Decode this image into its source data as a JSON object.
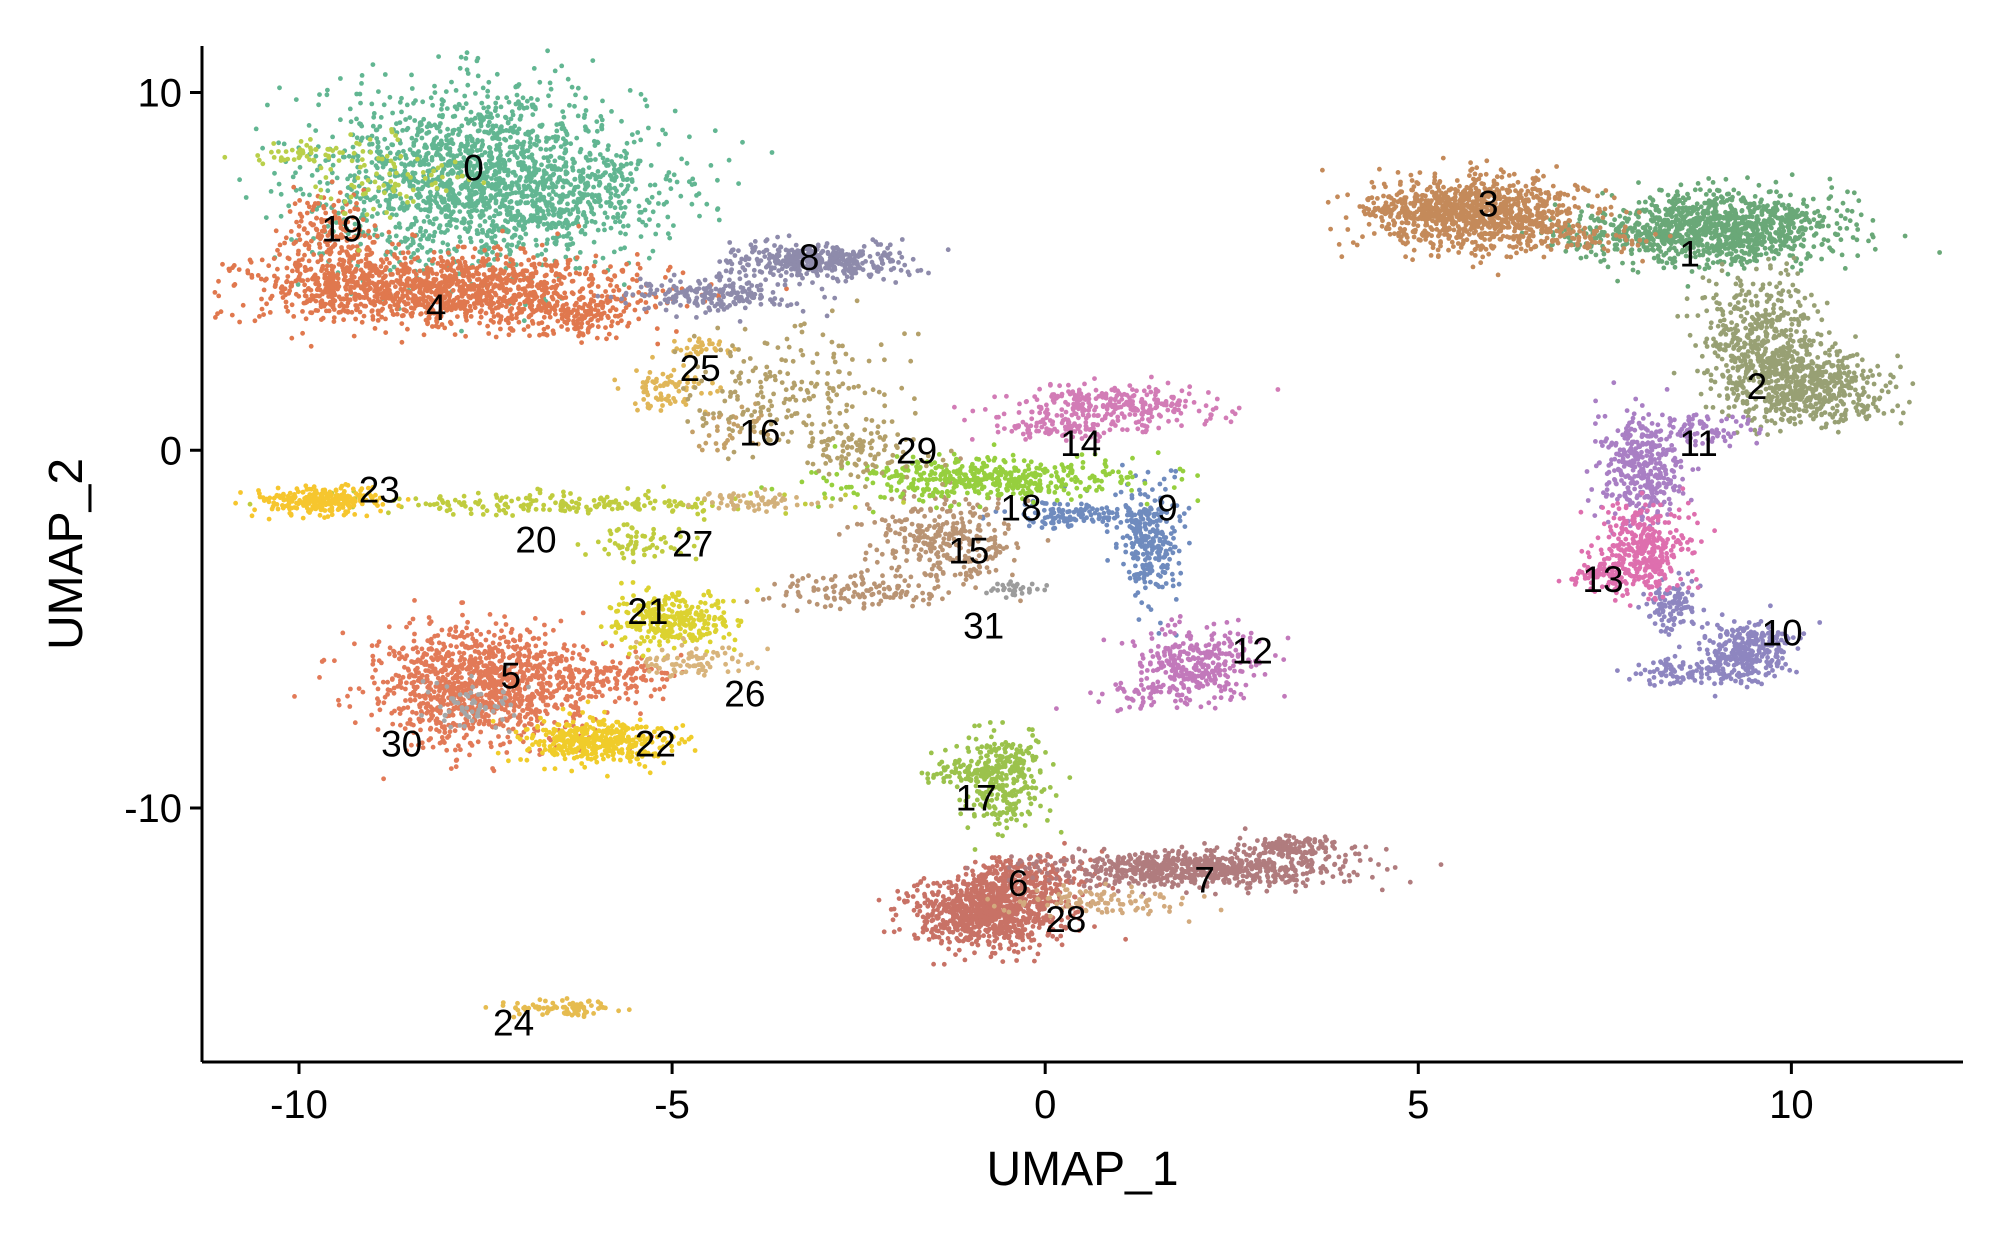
{
  "chart_data": {
    "type": "scatter",
    "xlabel": "UMAP_1",
    "ylabel": "UMAP_2",
    "xlim": [
      -11.3,
      12.3
    ],
    "ylim": [
      -17.1,
      11.3
    ],
    "xticks": [
      -10,
      -5,
      0,
      5,
      10
    ],
    "xtick_labels": [
      "-10",
      "-5",
      "0",
      "5",
      "10"
    ],
    "yticks": [
      -10,
      0,
      10
    ],
    "ytick_labels": [
      "-10",
      "0",
      "10"
    ],
    "grid": false,
    "legend": "none",
    "clusters": [
      {
        "label": "0",
        "label_x": -7.8,
        "label_y": 7.9,
        "color": "#62b692",
        "blobs": [
          [
            -7.6,
            7.6,
            1.1,
            1.3,
            1600
          ],
          [
            -6.5,
            7.2,
            0.9,
            0.8,
            300
          ]
        ]
      },
      {
        "label": "1",
        "label_x": 8.5,
        "label_y": 5.5,
        "color": "#6aa878",
        "blobs": [
          [
            9.0,
            6.2,
            0.8,
            0.5,
            1100
          ],
          [
            7.5,
            6.0,
            0.4,
            0.2,
            60
          ]
        ]
      },
      {
        "label": "2",
        "label_x": 9.4,
        "label_y": 1.8,
        "color": "#98a074",
        "blobs": [
          [
            9.6,
            3.0,
            0.4,
            0.9,
            500
          ],
          [
            10.3,
            1.8,
            0.5,
            0.5,
            500
          ]
        ]
      },
      {
        "label": "3",
        "label_x": 5.8,
        "label_y": 6.9,
        "color": "#c48a5a",
        "blobs": [
          [
            5.8,
            6.6,
            0.7,
            0.5,
            1000
          ],
          [
            5.0,
            6.8,
            0.4,
            0.2,
            80
          ],
          [
            7.2,
            5.9,
            0.5,
            0.2,
            60
          ]
        ]
      },
      {
        "label": "4",
        "label_x": -8.3,
        "label_y": 4.0,
        "color": "#e0784e",
        "blobs": [
          [
            -8.2,
            4.5,
            1.3,
            0.5,
            1300
          ],
          [
            -9.6,
            5.8,
            0.3,
            0.7,
            200
          ],
          [
            -6.3,
            3.8,
            0.5,
            0.3,
            150
          ]
        ]
      },
      {
        "label": "5",
        "label_x": -7.3,
        "label_y": -6.3,
        "color": "#e27a58",
        "blobs": [
          [
            -7.6,
            -6.6,
            0.7,
            0.8,
            1100
          ],
          [
            -6.0,
            -6.3,
            0.5,
            0.3,
            150
          ]
        ]
      },
      {
        "label": "6",
        "label_x": -0.5,
        "label_y": -12.1,
        "color": "#c87266",
        "blobs": [
          [
            -0.8,
            -12.9,
            0.5,
            0.5,
            900
          ],
          [
            -0.3,
            -11.9,
            0.4,
            0.3,
            200
          ]
        ]
      },
      {
        "label": "7",
        "label_x": 2.0,
        "label_y": -12.0,
        "color": "#b07c7e",
        "blobs": [
          [
            2.0,
            -11.7,
            1.0,
            0.25,
            700
          ],
          [
            3.3,
            -11.1,
            0.3,
            0.15,
            120
          ]
        ]
      },
      {
        "label": "8",
        "label_x": -3.3,
        "label_y": 5.4,
        "color": "#8e8bab",
        "blobs": [
          [
            -3.0,
            5.3,
            0.6,
            0.25,
            400
          ],
          [
            -4.5,
            4.3,
            0.6,
            0.25,
            200
          ]
        ]
      },
      {
        "label": "9",
        "label_x": 1.5,
        "label_y": -1.6,
        "color": "#6f8bbe",
        "blobs": [
          [
            1.4,
            -2.6,
            0.2,
            0.8,
            250
          ],
          [
            0.6,
            -1.8,
            0.5,
            0.2,
            150
          ]
        ]
      },
      {
        "label": "10",
        "label_x": 9.6,
        "label_y": -5.1,
        "color": "#8e86c0",
        "blobs": [
          [
            9.4,
            -5.6,
            0.3,
            0.4,
            300
          ],
          [
            8.6,
            -6.2,
            0.4,
            0.2,
            100
          ],
          [
            8.4,
            -4.4,
            0.2,
            0.4,
            100
          ]
        ]
      },
      {
        "label": "11",
        "label_x": 8.5,
        "label_y": 0.2,
        "color": "#a97fc4",
        "blobs": [
          [
            8.0,
            -0.5,
            0.3,
            0.7,
            350
          ],
          [
            8.7,
            0.6,
            0.4,
            0.2,
            80
          ]
        ]
      },
      {
        "label": "12",
        "label_x": 2.5,
        "label_y": -5.6,
        "color": "#c279bb",
        "blobs": [
          [
            2.0,
            -5.9,
            0.4,
            0.5,
            300
          ],
          [
            1.5,
            -6.8,
            0.4,
            0.2,
            60
          ]
        ]
      },
      {
        "label": "13",
        "label_x": 7.2,
        "label_y": -3.6,
        "color": "#de6fae",
        "blobs": [
          [
            8.0,
            -2.8,
            0.3,
            0.6,
            350
          ],
          [
            7.5,
            -3.5,
            0.3,
            0.2,
            80
          ]
        ]
      },
      {
        "label": "14",
        "label_x": 0.2,
        "label_y": 0.2,
        "color": "#d27cb6",
        "blobs": [
          [
            0.9,
            1.2,
            0.7,
            0.3,
            300
          ],
          [
            0.2,
            0.6,
            0.4,
            0.2,
            80
          ]
        ]
      },
      {
        "label": "15",
        "label_x": -1.3,
        "label_y": -2.8,
        "color": "#b99474",
        "blobs": [
          [
            -1.4,
            -2.5,
            0.5,
            0.6,
            300
          ],
          [
            -2.5,
            -3.9,
            0.6,
            0.3,
            120
          ]
        ]
      },
      {
        "label": "16",
        "label_x": -4.1,
        "label_y": 0.5,
        "color": "#c4a068",
        "blobs": [
          [
            -4.2,
            0.6,
            0.2,
            0.3,
            40
          ]
        ]
      },
      {
        "label": "17",
        "label_x": -1.2,
        "label_y": -9.7,
        "color": "#9bc24c",
        "blobs": [
          [
            -0.6,
            -9.2,
            0.3,
            0.7,
            300
          ],
          [
            -1.1,
            -9.0,
            0.3,
            0.2,
            60
          ]
        ]
      },
      {
        "label": "18",
        "label_x": -0.6,
        "label_y": -1.6,
        "color": "#96cf3e",
        "blobs": [
          [
            -0.9,
            -0.8,
            1.0,
            0.3,
            450
          ]
        ]
      },
      {
        "label": "19",
        "label_x": -9.7,
        "label_y": 6.2,
        "color": "#b9cf4a",
        "blobs": [
          [
            -9.8,
            8.3,
            0.4,
            0.15,
            50
          ],
          [
            -8.8,
            7.5,
            0.5,
            0.6,
            80
          ]
        ]
      },
      {
        "label": "20",
        "label_x": -7.1,
        "label_y": -2.5,
        "color": "#c0cc3e",
        "blobs": [
          [
            -6.6,
            -1.5,
            1.4,
            0.15,
            200
          ],
          [
            -5.4,
            -2.6,
            0.3,
            0.3,
            60
          ]
        ]
      },
      {
        "label": "21",
        "label_x": -5.6,
        "label_y": -4.5,
        "color": "#dcd230",
        "blobs": [
          [
            -5.0,
            -4.8,
            0.4,
            0.4,
            300
          ]
        ]
      },
      {
        "label": "22",
        "label_x": -5.5,
        "label_y": -8.2,
        "color": "#f0cc2a",
        "blobs": [
          [
            -5.9,
            -8.2,
            0.5,
            0.3,
            300
          ],
          [
            -6.4,
            -8.0,
            0.3,
            0.3,
            100
          ]
        ]
      },
      {
        "label": "23",
        "label_x": -9.2,
        "label_y": -1.1,
        "color": "#f6c62e",
        "blobs": [
          [
            -9.7,
            -1.4,
            0.4,
            0.2,
            250
          ]
        ]
      },
      {
        "label": "24",
        "label_x": -7.4,
        "label_y": -16.0,
        "color": "#e6bc50",
        "blobs": [
          [
            -6.5,
            -15.6,
            0.4,
            0.12,
            80
          ]
        ]
      },
      {
        "label": "25",
        "label_x": -4.9,
        "label_y": 2.3,
        "color": "#e0b658",
        "blobs": [
          [
            -5.1,
            1.7,
            0.3,
            0.3,
            80
          ],
          [
            -4.6,
            2.9,
            0.2,
            0.2,
            30
          ]
        ]
      },
      {
        "label": "26",
        "label_x": -4.3,
        "label_y": -6.8,
        "color": "#d8b47c",
        "blobs": [
          [
            -4.7,
            -5.9,
            0.4,
            0.2,
            80
          ]
        ]
      },
      {
        "label": "27",
        "label_x": -5.0,
        "label_y": -2.6,
        "color": "#d2b07a",
        "blobs": [
          [
            -3.9,
            -1.4,
            0.4,
            0.15,
            60
          ]
        ]
      },
      {
        "label": "28",
        "label_x": 0.0,
        "label_y": -13.1,
        "color": "#d2aa7e",
        "blobs": [
          [
            0.8,
            -12.6,
            0.6,
            0.2,
            100
          ]
        ]
      },
      {
        "label": "29",
        "label_x": -2.0,
        "label_y": 0.0,
        "color": "#b4a06a",
        "blobs": [
          [
            -3.4,
            1.6,
            0.7,
            0.8,
            200
          ],
          [
            -2.5,
            0.0,
            0.5,
            0.4,
            100
          ]
        ]
      },
      {
        "label": "30",
        "label_x": -8.9,
        "label_y": -8.2,
        "color": "#a6a6a6",
        "blobs": [
          [
            -7.7,
            -7.2,
            0.3,
            0.4,
            60
          ]
        ]
      },
      {
        "label": "31",
        "label_x": -1.1,
        "label_y": -4.9,
        "color": "#9c9c9c",
        "blobs": [
          [
            -0.4,
            -3.9,
            0.2,
            0.12,
            30
          ]
        ]
      }
    ]
  }
}
